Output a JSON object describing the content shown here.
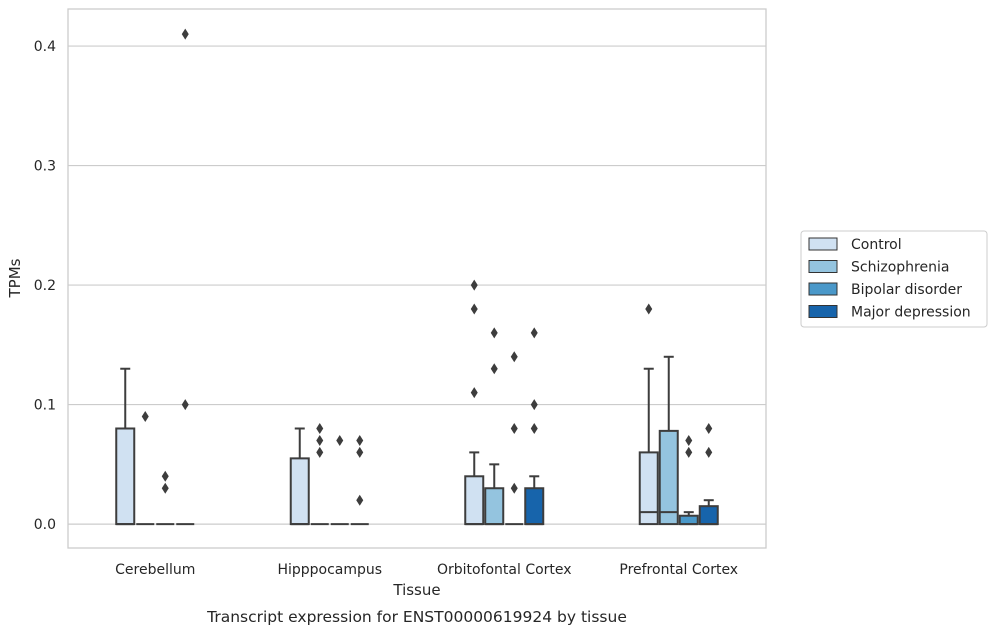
{
  "caption": "Transcript expression for ENST00000619924 by tissue",
  "chart_data": {
    "type": "box",
    "xlabel": "Tissue",
    "ylabel": "TPMs",
    "ylim": [
      -0.02,
      0.431
    ],
    "yticks": [
      0.0,
      0.1,
      0.2,
      0.3,
      0.4
    ],
    "ytick_labels": [
      "0.0",
      "0.1",
      "0.2",
      "0.3",
      "0.4"
    ],
    "grid": true,
    "legend_position": "right",
    "categories": [
      "Cerebellum",
      "Hipppocampus",
      "Orbitofontal Cortex",
      "Prefrontal Cortex"
    ],
    "series": [
      {
        "name": "Control",
        "color": "#d0e1f2",
        "boxes": [
          {
            "q1": 0.0,
            "median": 0.0,
            "q3": 0.08,
            "whisker_low": 0.0,
            "whisker_high": 0.13,
            "outliers": []
          },
          {
            "q1": 0.0,
            "median": 0.0,
            "q3": 0.055,
            "whisker_low": 0.0,
            "whisker_high": 0.08,
            "outliers": []
          },
          {
            "q1": 0.0,
            "median": 0.0,
            "q3": 0.04,
            "whisker_low": 0.0,
            "whisker_high": 0.06,
            "outliers": [
              0.11,
              0.18,
              0.2
            ]
          },
          {
            "q1": 0.0,
            "median": 0.01,
            "q3": 0.06,
            "whisker_low": 0.0,
            "whisker_high": 0.13,
            "outliers": [
              0.18
            ]
          }
        ]
      },
      {
        "name": "Schizophrenia",
        "color": "#94c4df",
        "boxes": [
          {
            "q1": 0.0,
            "median": 0.0,
            "q3": 0.0,
            "whisker_low": 0.0,
            "whisker_high": 0.0,
            "outliers": [
              0.09
            ]
          },
          {
            "q1": 0.0,
            "median": 0.0,
            "q3": 0.0,
            "whisker_low": 0.0,
            "whisker_high": 0.0,
            "outliers": [
              0.06,
              0.07,
              0.08
            ]
          },
          {
            "q1": 0.0,
            "median": 0.0,
            "q3": 0.03,
            "whisker_low": 0.0,
            "whisker_high": 0.05,
            "outliers": [
              0.13,
              0.16
            ]
          },
          {
            "q1": 0.0,
            "median": 0.01,
            "q3": 0.078,
            "whisker_low": 0.0,
            "whisker_high": 0.14,
            "outliers": []
          }
        ]
      },
      {
        "name": "Bipolar disorder",
        "color": "#4a98c9",
        "boxes": [
          {
            "q1": 0.0,
            "median": 0.0,
            "q3": 0.0,
            "whisker_low": 0.0,
            "whisker_high": 0.0,
            "outliers": [
              0.03,
              0.04
            ]
          },
          {
            "q1": 0.0,
            "median": 0.0,
            "q3": 0.0,
            "whisker_low": 0.0,
            "whisker_high": 0.0,
            "outliers": [
              0.07
            ]
          },
          {
            "q1": 0.0,
            "median": 0.0,
            "q3": 0.0,
            "whisker_low": 0.0,
            "whisker_high": 0.0,
            "outliers": [
              0.03,
              0.08,
              0.14
            ]
          },
          {
            "q1": 0.0,
            "median": 0.0,
            "q3": 0.007,
            "whisker_low": 0.0,
            "whisker_high": 0.01,
            "outliers": [
              0.06,
              0.07
            ]
          }
        ]
      },
      {
        "name": "Major depression",
        "color": "#1764ab",
        "boxes": [
          {
            "q1": 0.0,
            "median": 0.0,
            "q3": 0.0,
            "whisker_low": 0.0,
            "whisker_high": 0.0,
            "outliers": [
              0.1,
              0.41
            ]
          },
          {
            "q1": 0.0,
            "median": 0.0,
            "q3": 0.0,
            "whisker_low": 0.0,
            "whisker_high": 0.0,
            "outliers": [
              0.02,
              0.06,
              0.07
            ]
          },
          {
            "q1": 0.0,
            "median": 0.0,
            "q3": 0.03,
            "whisker_low": 0.0,
            "whisker_high": 0.04,
            "outliers": [
              0.08,
              0.1,
              0.16
            ]
          },
          {
            "q1": 0.0,
            "median": 0.0,
            "q3": 0.015,
            "whisker_low": 0.0,
            "whisker_high": 0.02,
            "outliers": [
              0.06,
              0.08
            ]
          }
        ]
      }
    ]
  }
}
